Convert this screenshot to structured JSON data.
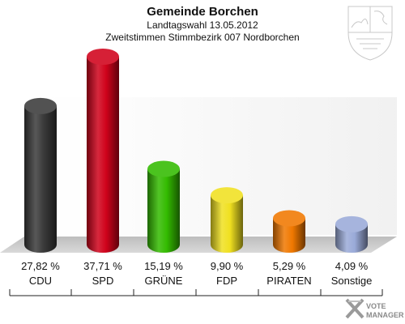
{
  "chart_data": {
    "type": "bar",
    "title": "Gemeinde Borchen",
    "subtitle": "Landtagswahl 13.05.2012",
    "subtitle2": "Zweitstimmen Stimmbezirk 007 Nordborchen",
    "categories": [
      "CDU",
      "SPD",
      "GRÜNE",
      "FDP",
      "PIRATEN",
      "Sonstige"
    ],
    "values": [
      27.82,
      37.71,
      15.19,
      9.9,
      5.29,
      4.09
    ],
    "value_labels": [
      "27,82 %",
      "37,71 %",
      "15,19 %",
      "9,90 %",
      "5,29 %",
      "4,09 %"
    ],
    "colors": [
      "#3a3a3a",
      "#d0021b",
      "#33bb00",
      "#f0e020",
      "#f07800",
      "#9aaad8"
    ],
    "ylim": [
      0,
      40
    ],
    "grid": false,
    "legend": "none"
  },
  "branding": {
    "line1": "VOTE",
    "line2": "MANAGER",
    "coat_of_arms": "nrw-coat-of-arms-icon"
  }
}
